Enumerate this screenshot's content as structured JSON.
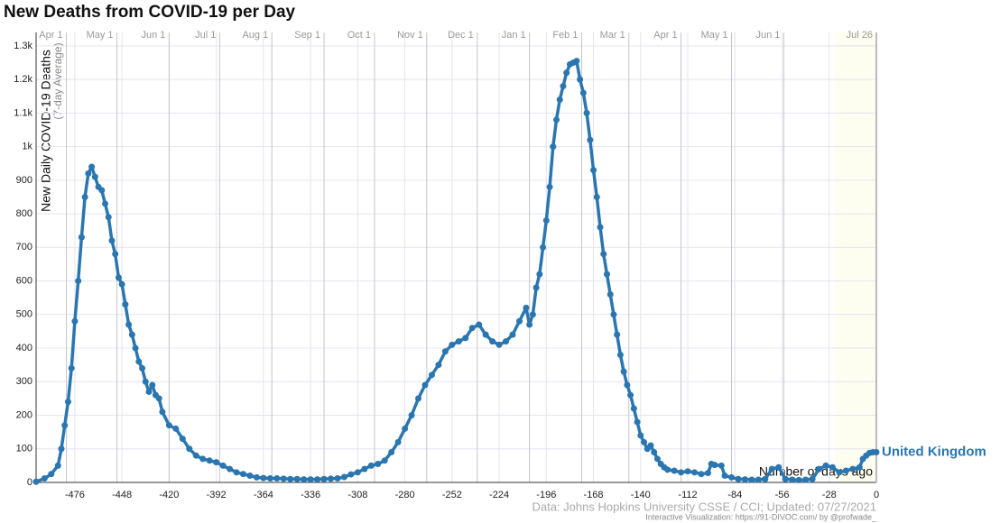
{
  "chart_data": {
    "type": "line",
    "title": "New Deaths from COVID-19 per Day",
    "y_label": "New Daily COVID-19 Deaths",
    "y_sublabel": "(7-day Average)",
    "x_label": "Number of days ago",
    "source": "Data: Johns Hopkins University CSSE / CCI; Updated: 07/27/2021",
    "credit": "Interactive Visualization: https://91-DIVOC.com/ by @profwade_",
    "xlim": [
      -499,
      0
    ],
    "ylim": [
      0,
      1340
    ],
    "xticks": [
      -476,
      -448,
      -420,
      -392,
      -364,
      -336,
      -308,
      -280,
      -252,
      -224,
      -196,
      -168,
      -140,
      -112,
      -84,
      -56,
      -28,
      0
    ],
    "yticks": [
      0,
      100,
      200,
      300,
      400,
      500,
      600,
      700,
      800,
      900,
      {
        "value": 1000,
        "label": "1k"
      },
      {
        "value": 1100,
        "label": "1.1k"
      },
      {
        "value": 1200,
        "label": "1.2k"
      },
      {
        "value": 1300,
        "label": "1.3k"
      }
    ],
    "x2ticks": [
      {
        "value": -481,
        "label": "Apr 1"
      },
      {
        "value": -451,
        "label": "May 1"
      },
      {
        "value": -420,
        "label": "Jun 1"
      },
      {
        "value": -390,
        "label": "Jul 1"
      },
      {
        "value": -359,
        "label": "Aug 1"
      },
      {
        "value": -328,
        "label": "Sep 1"
      },
      {
        "value": -298,
        "label": "Oct 1"
      },
      {
        "value": -267,
        "label": "Nov 1"
      },
      {
        "value": -237,
        "label": "Dec 1"
      },
      {
        "value": -206,
        "label": "Jan 1"
      },
      {
        "value": -175,
        "label": "Feb 1"
      },
      {
        "value": -147,
        "label": "Mar 1"
      },
      {
        "value": -116,
        "label": "Apr 1"
      },
      {
        "value": -86,
        "label": "May 1"
      },
      {
        "value": -55,
        "label": "Jun 1"
      },
      {
        "value": 0,
        "label": "Jul 26"
      }
    ],
    "grid": true,
    "x": [
      -499,
      -494,
      -490,
      -486,
      -484,
      -482,
      -480,
      -478,
      -476,
      -474,
      -472,
      -470,
      -468,
      -466,
      -464,
      -462,
      -460,
      -458,
      -456,
      -454,
      -452,
      -450,
      -448,
      -446,
      -444,
      -442,
      -440,
      -438,
      -436,
      -434,
      -432,
      -430,
      -428,
      -426,
      -424,
      -420,
      -416,
      -412,
      -408,
      -404,
      -400,
      -396,
      -392,
      -388,
      -384,
      -380,
      -376,
      -372,
      -368,
      -364,
      -360,
      -356,
      -352,
      -348,
      -344,
      -340,
      -336,
      -332,
      -328,
      -324,
      -320,
      -316,
      -312,
      -308,
      -304,
      -300,
      -296,
      -292,
      -288,
      -284,
      -280,
      -276,
      -272,
      -268,
      -264,
      -260,
      -256,
      -252,
      -248,
      -244,
      -240,
      -236,
      -232,
      -228,
      -224,
      -220,
      -216,
      -212,
      -208,
      -206,
      -204,
      -202,
      -200,
      -198,
      -196,
      -194,
      -192,
      -190,
      -188,
      -186,
      -184,
      -182,
      -180,
      -178,
      -176,
      -174,
      -172,
      -170,
      -168,
      -166,
      -164,
      -162,
      -160,
      -158,
      -156,
      -154,
      -152,
      -150,
      -148,
      -146,
      -144,
      -142,
      -140,
      -138,
      -136,
      -134,
      -132,
      -130,
      -128,
      -126,
      -124,
      -120,
      -116,
      -112,
      -108,
      -104,
      -100,
      -98,
      -96,
      -92,
      -90,
      -86,
      -82,
      -78,
      -74,
      -70,
      -66,
      -62,
      -58,
      -54,
      -50,
      -46,
      -42,
      -38,
      -34,
      -30,
      -26,
      -22,
      -18,
      -14,
      -10,
      -8,
      -6,
      -4,
      -2,
      0
    ],
    "series": [
      {
        "name": "United Kingdom",
        "color": "#2a76b0",
        "values": [
          2,
          12,
          25,
          50,
          100,
          170,
          240,
          340,
          480,
          600,
          730,
          850,
          920,
          940,
          910,
          880,
          870,
          830,
          790,
          720,
          680,
          610,
          590,
          530,
          470,
          440,
          400,
          360,
          340,
          300,
          270,
          290,
          260,
          250,
          210,
          170,
          160,
          130,
          100,
          80,
          70,
          65,
          60,
          50,
          40,
          30,
          25,
          20,
          15,
          13,
          12,
          12,
          11,
          10,
          10,
          9,
          9,
          9,
          10,
          11,
          12,
          16,
          24,
          30,
          40,
          50,
          55,
          65,
          90,
          120,
          160,
          200,
          250,
          290,
          320,
          350,
          390,
          410,
          420,
          430,
          460,
          470,
          440,
          420,
          410,
          420,
          440,
          480,
          520,
          470,
          500,
          580,
          620,
          700,
          780,
          880,
          1000,
          1080,
          1140,
          1180,
          1220,
          1245,
          1250,
          1255,
          1200,
          1160,
          1100,
          1020,
          930,
          850,
          760,
          680,
          620,
          560,
          500,
          440,
          380,
          330,
          290,
          260,
          220,
          180,
          140,
          120,
          100,
          110,
          90,
          70,
          55,
          45,
          38,
          35,
          30,
          33,
          30,
          25,
          28,
          55,
          52,
          50,
          20,
          15,
          10,
          9,
          8,
          8,
          10,
          40,
          45,
          10,
          8,
          7,
          8,
          10,
          40,
          50,
          45,
          30,
          35,
          40,
          45,
          70,
          80,
          88,
          90,
          90
        ]
      }
    ]
  }
}
